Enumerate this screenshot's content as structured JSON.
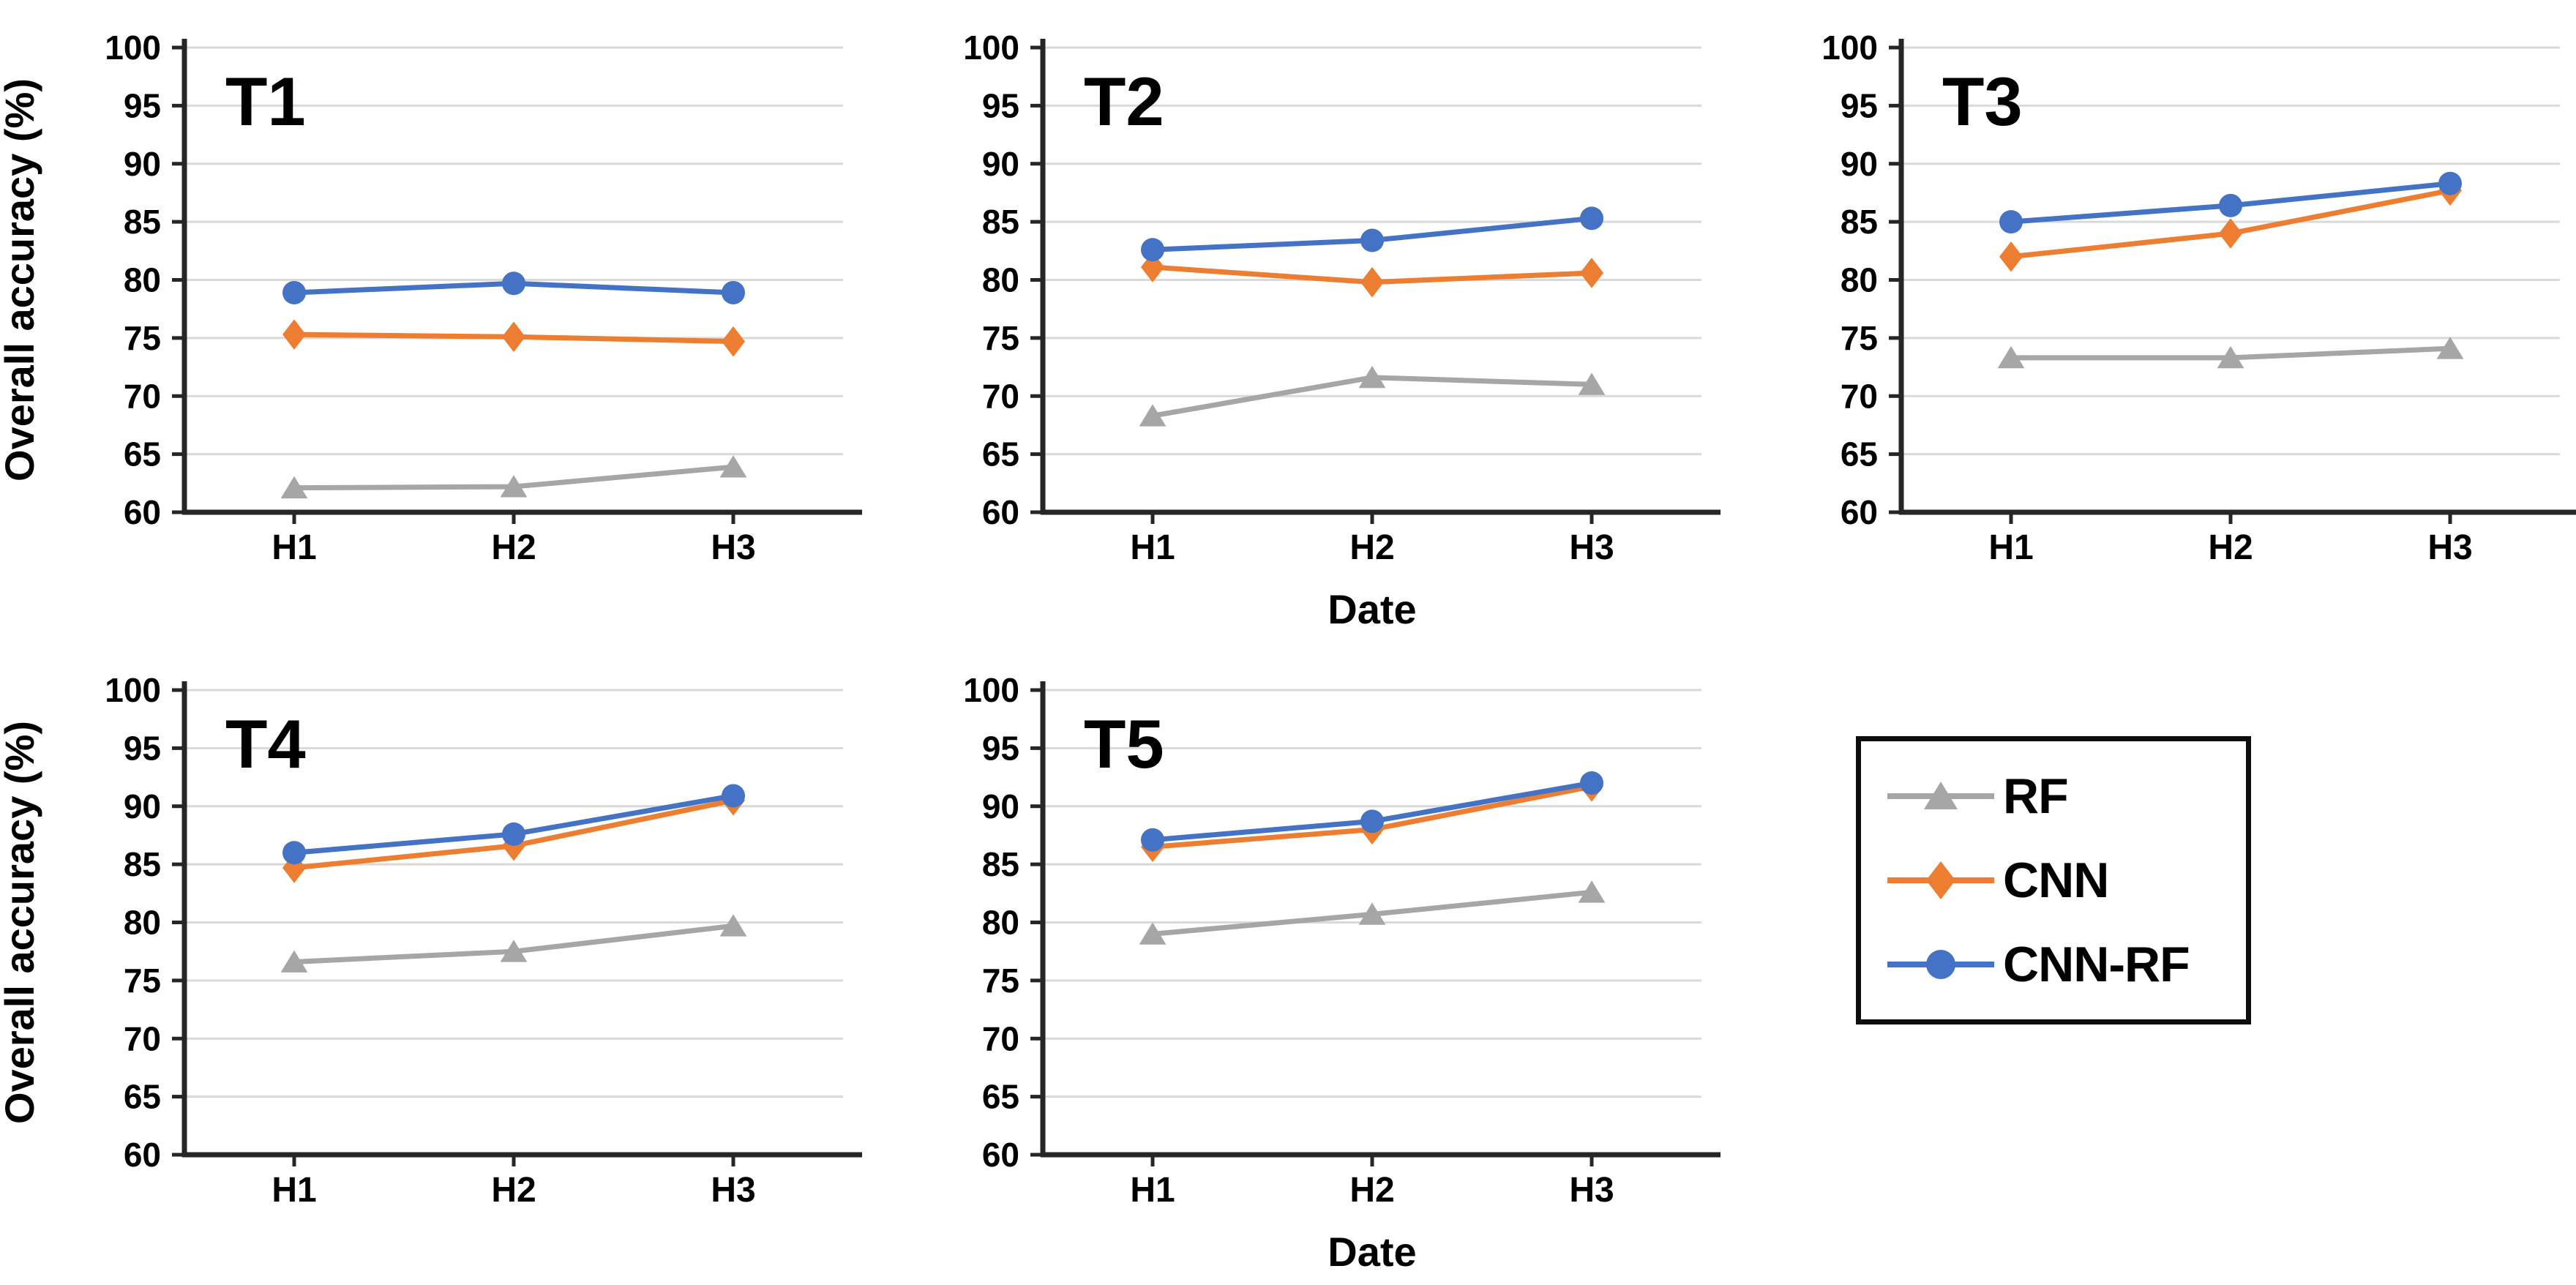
{
  "figure": {
    "background": "#ffffff",
    "text_color": "#000000",
    "gridline_color": "#d9d9d9",
    "axis_color": "#262626"
  },
  "chart_data": {
    "type": "line",
    "shared": {
      "categories": [
        "H1",
        "H2",
        "H3"
      ],
      "ylim": [
        60,
        100
      ],
      "ytick_step": 5,
      "yticks": [
        60,
        65,
        70,
        75,
        80,
        85,
        90,
        95,
        100
      ],
      "grid": true,
      "ylabel": "Overall accuracy (%)",
      "xlabel": "Date",
      "legend_position": "bottom-right-cell"
    },
    "series_styles": [
      {
        "name": "RF",
        "color": "#a6a6a6",
        "marker": "triangle"
      },
      {
        "name": "CNN",
        "color": "#ed7d31",
        "marker": "diamond"
      },
      {
        "name": "CNN-RF",
        "color": "#4472c4",
        "marker": "circle"
      }
    ],
    "charts": [
      {
        "title": "T1",
        "show_ylabel": true,
        "show_xlabel": false,
        "series": [
          {
            "name": "RF",
            "values": [
              62.1,
              62.2,
              63.9
            ]
          },
          {
            "name": "CNN",
            "values": [
              75.3,
              75.1,
              74.7
            ]
          },
          {
            "name": "CNN-RF",
            "values": [
              78.9,
              79.7,
              78.9
            ]
          }
        ]
      },
      {
        "title": "T2",
        "show_ylabel": false,
        "show_xlabel": true,
        "series": [
          {
            "name": "RF",
            "values": [
              68.3,
              71.6,
              71.0
            ]
          },
          {
            "name": "CNN",
            "values": [
              81.1,
              79.8,
              80.6
            ]
          },
          {
            "name": "CNN-RF",
            "values": [
              82.6,
              83.4,
              85.3
            ]
          }
        ]
      },
      {
        "title": "T3",
        "show_ylabel": false,
        "show_xlabel": false,
        "series": [
          {
            "name": "RF",
            "values": [
              73.3,
              73.3,
              74.1
            ]
          },
          {
            "name": "CNN",
            "values": [
              82.0,
              84.0,
              87.7
            ]
          },
          {
            "name": "CNN-RF",
            "values": [
              85.0,
              86.4,
              88.3
            ]
          }
        ]
      },
      {
        "title": "T4",
        "show_ylabel": true,
        "show_xlabel": false,
        "series": [
          {
            "name": "RF",
            "values": [
              76.6,
              77.5,
              79.7
            ]
          },
          {
            "name": "CNN",
            "values": [
              84.7,
              86.6,
              90.5
            ]
          },
          {
            "name": "CNN-RF",
            "values": [
              86.0,
              87.6,
              90.9
            ]
          }
        ]
      },
      {
        "title": "T5",
        "show_ylabel": false,
        "show_xlabel": true,
        "series": [
          {
            "name": "RF",
            "values": [
              79.0,
              80.7,
              82.6
            ]
          },
          {
            "name": "CNN",
            "values": [
              86.5,
              88.0,
              91.7
            ]
          },
          {
            "name": "CNN-RF",
            "values": [
              87.1,
              88.7,
              92.0
            ]
          }
        ]
      }
    ]
  },
  "legend": {
    "entries": [
      {
        "label": "RF",
        "color": "#a6a6a6",
        "marker": "triangle"
      },
      {
        "label": "CNN",
        "color": "#ed7d31",
        "marker": "diamond"
      },
      {
        "label": "CNN-RF",
        "color": "#4472c4",
        "marker": "circle"
      }
    ]
  }
}
